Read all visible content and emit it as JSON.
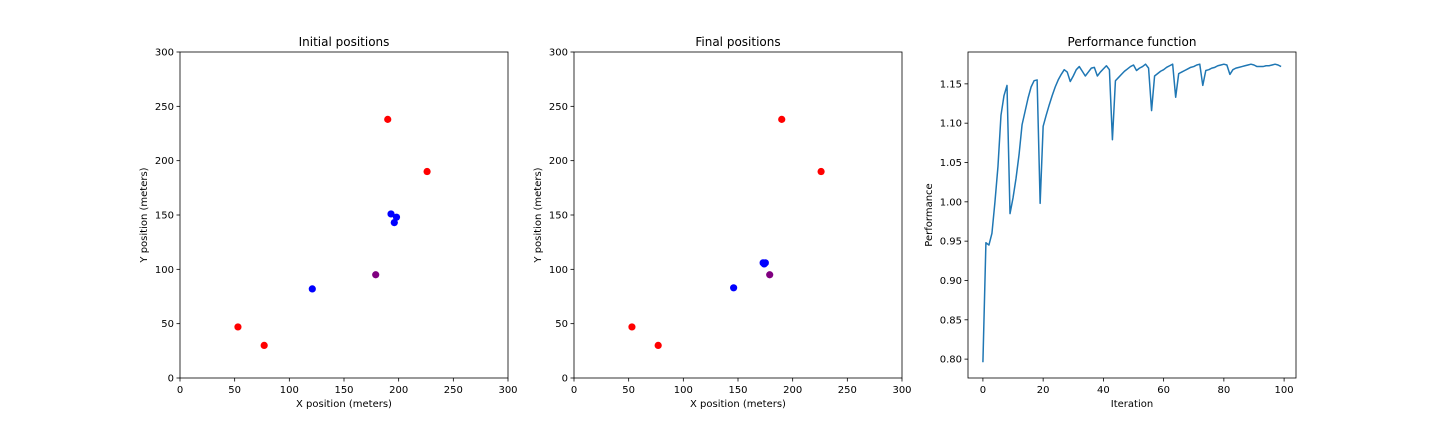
{
  "chart_data": [
    {
      "type": "scatter",
      "title": "Initial positions",
      "xlabel": "X position (meters)",
      "ylabel": "Y position (meters)",
      "xlim": [
        0,
        300
      ],
      "ylim": [
        0,
        300
      ],
      "xticks": [
        0,
        50,
        100,
        150,
        200,
        250,
        300
      ],
      "yticks": [
        0,
        50,
        100,
        150,
        200,
        250,
        300
      ],
      "grid": false,
      "points": [
        {
          "x": 53,
          "y": 47,
          "color": "#ff0000"
        },
        {
          "x": 77,
          "y": 30,
          "color": "#ff0000"
        },
        {
          "x": 190,
          "y": 238,
          "color": "#ff0000"
        },
        {
          "x": 226,
          "y": 190,
          "color": "#ff0000"
        },
        {
          "x": 121,
          "y": 82,
          "color": "#0000ff"
        },
        {
          "x": 193,
          "y": 151,
          "color": "#0000ff"
        },
        {
          "x": 198,
          "y": 148,
          "color": "#0000ff"
        },
        {
          "x": 196,
          "y": 143,
          "color": "#0000ff"
        },
        {
          "x": 179,
          "y": 95,
          "color": "#800080"
        }
      ]
    },
    {
      "type": "scatter",
      "title": "Final positions",
      "xlabel": "X position (meters)",
      "ylabel": "Y position (meters)",
      "xlim": [
        0,
        300
      ],
      "ylim": [
        0,
        300
      ],
      "xticks": [
        0,
        50,
        100,
        150,
        200,
        250,
        300
      ],
      "yticks": [
        0,
        50,
        100,
        150,
        200,
        250,
        300
      ],
      "grid": false,
      "points": [
        {
          "x": 53,
          "y": 47,
          "color": "#ff0000"
        },
        {
          "x": 77,
          "y": 30,
          "color": "#ff0000"
        },
        {
          "x": 190,
          "y": 238,
          "color": "#ff0000"
        },
        {
          "x": 226,
          "y": 190,
          "color": "#ff0000"
        },
        {
          "x": 146,
          "y": 83,
          "color": "#0000ff"
        },
        {
          "x": 173,
          "y": 106,
          "color": "#0000ff"
        },
        {
          "x": 174,
          "y": 105,
          "color": "#0000ff"
        },
        {
          "x": 175,
          "y": 106,
          "color": "#0000ff"
        },
        {
          "x": 179,
          "y": 95,
          "color": "#800080"
        }
      ]
    },
    {
      "type": "line",
      "title": "Performance function",
      "xlabel": "Iteration",
      "ylabel": "Performance",
      "xlim": [
        -4.95,
        103.95
      ],
      "ylim": [
        0.776,
        1.1905
      ],
      "xticks": [
        0,
        20,
        40,
        60,
        80,
        100
      ],
      "yticks": [
        0.8,
        0.85,
        0.9,
        0.95,
        1.0,
        1.05,
        1.1,
        1.15
      ],
      "ytick_decimals": 2,
      "grid": false,
      "series": [
        {
          "color": "#1f77b4",
          "x": [
            0,
            1,
            2,
            3,
            4,
            5,
            6,
            7,
            8,
            9,
            10,
            11,
            12,
            13,
            14,
            15,
            16,
            17,
            18,
            19,
            20,
            21,
            22,
            23,
            24,
            25,
            26,
            27,
            28,
            29,
            30,
            31,
            32,
            33,
            34,
            35,
            36,
            37,
            38,
            39,
            40,
            41,
            42,
            43,
            44,
            45,
            46,
            47,
            48,
            49,
            50,
            51,
            52,
            53,
            54,
            55,
            56,
            57,
            58,
            59,
            60,
            61,
            62,
            63,
            64,
            65,
            66,
            67,
            68,
            69,
            70,
            71,
            72,
            73,
            74,
            75,
            76,
            77,
            78,
            79,
            80,
            81,
            82,
            83,
            84,
            85,
            86,
            87,
            88,
            89,
            90,
            91,
            92,
            93,
            94,
            95,
            96,
            97,
            98,
            99
          ],
          "y": [
            0.796,
            0.948,
            0.945,
            0.96,
            1.0,
            1.045,
            1.11,
            1.135,
            1.148,
            0.985,
            1.005,
            1.03,
            1.06,
            1.098,
            1.115,
            1.132,
            1.146,
            1.154,
            1.155,
            0.998,
            1.096,
            1.11,
            1.123,
            1.135,
            1.146,
            1.155,
            1.162,
            1.168,
            1.165,
            1.153,
            1.16,
            1.168,
            1.172,
            1.166,
            1.16,
            1.165,
            1.17,
            1.171,
            1.16,
            1.165,
            1.169,
            1.173,
            1.168,
            1.079,
            1.154,
            1.158,
            1.162,
            1.166,
            1.169,
            1.172,
            1.174,
            1.167,
            1.17,
            1.172,
            1.175,
            1.17,
            1.116,
            1.16,
            1.163,
            1.166,
            1.168,
            1.171,
            1.173,
            1.175,
            1.133,
            1.163,
            1.165,
            1.167,
            1.169,
            1.171,
            1.172,
            1.174,
            1.175,
            1.148,
            1.167,
            1.168,
            1.17,
            1.171,
            1.173,
            1.174,
            1.175,
            1.174,
            1.162,
            1.168,
            1.17,
            1.171,
            1.172,
            1.173,
            1.174,
            1.175,
            1.174,
            1.172,
            1.172,
            1.172,
            1.173,
            1.173,
            1.174,
            1.175,
            1.174,
            1.172
          ]
        }
      ]
    }
  ]
}
